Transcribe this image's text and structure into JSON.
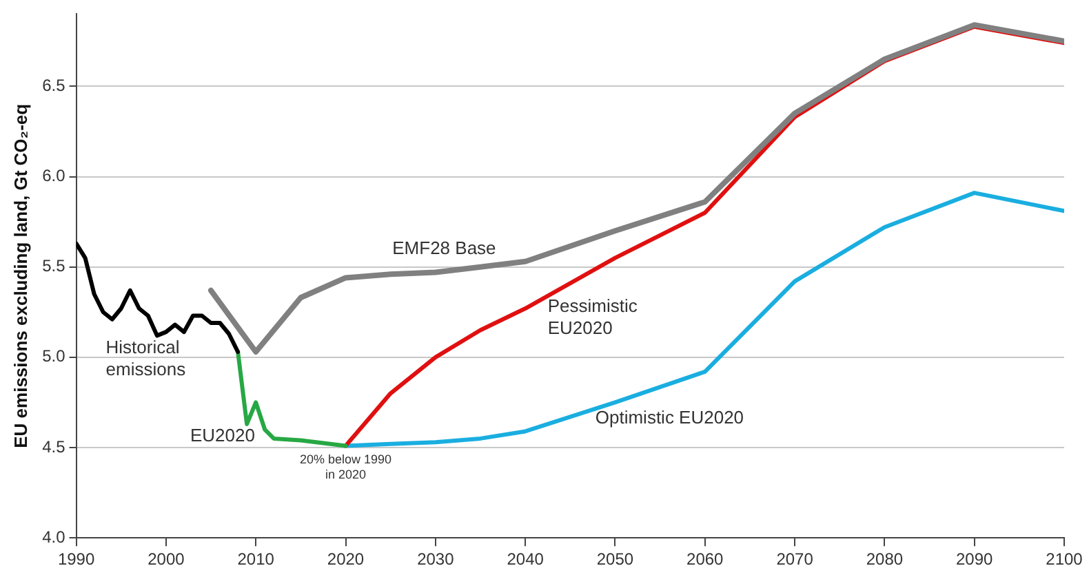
{
  "chart_data": {
    "type": "line",
    "ylabel": "EU emissions excluding land, Gt CO₂-eq",
    "xlim": [
      1990,
      2100
    ],
    "xticks": [
      1990,
      2000,
      2010,
      2020,
      2030,
      2040,
      2050,
      2060,
      2070,
      2080,
      2090,
      2100
    ],
    "ylim": [
      4.0,
      6.9
    ],
    "yticks": [
      {
        "value": 4,
        "label": "4.0"
      },
      4.5,
      {
        "value": 5,
        "label": "5.0"
      },
      5.5,
      {
        "value": 6,
        "label": "6.0"
      },
      6.5
    ],
    "grid": "y",
    "legend": false,
    "marker": "none",
    "line_style": "solid",
    "series": [
      {
        "name": "Historical emissions",
        "color": "#000000",
        "x": [
          1990,
          1991,
          1992,
          1993,
          1994,
          1995,
          1996,
          1997,
          1998,
          1999,
          2000,
          2001,
          2002,
          2003,
          2004,
          2005,
          2006,
          2007,
          2008
        ],
        "values": [
          5.63,
          5.55,
          5.35,
          5.25,
          5.21,
          5.27,
          5.37,
          5.27,
          5.23,
          5.12,
          5.14,
          5.18,
          5.14,
          5.23,
          5.23,
          5.19,
          5.19,
          5.13,
          5.03
        ]
      },
      {
        "name": "EU2020",
        "color": "#27a844",
        "x": [
          2008,
          2009,
          2010,
          2011,
          2012,
          2015,
          2020
        ],
        "values": [
          5.03,
          4.63,
          4.75,
          4.6,
          4.55,
          4.54,
          4.51
        ]
      },
      {
        "name": "EMF28 Base",
        "color": "#808080",
        "x": [
          2005,
          2010,
          2015,
          2020,
          2025,
          2030,
          2035,
          2040,
          2050,
          2060,
          2070,
          2080,
          2090,
          2100
        ],
        "values": [
          5.37,
          5.03,
          5.33,
          5.44,
          5.46,
          5.47,
          5.5,
          5.53,
          5.7,
          5.86,
          6.35,
          6.65,
          6.84,
          6.75
        ]
      },
      {
        "name": "Pessimistic EU2020",
        "color": "#e01010",
        "x": [
          2020,
          2025,
          2030,
          2035,
          2040,
          2050,
          2060,
          2070,
          2080,
          2090,
          2100
        ],
        "values": [
          4.51,
          4.8,
          5.0,
          5.15,
          5.27,
          5.55,
          5.8,
          6.33,
          6.64,
          6.83,
          6.74
        ]
      },
      {
        "name": "Optimistic EU2020",
        "color": "#1aaee0",
        "x": [
          2020,
          2025,
          2030,
          2035,
          2040,
          2050,
          2060,
          2070,
          2080,
          2090,
          2100
        ],
        "values": [
          4.51,
          4.52,
          4.53,
          4.55,
          4.59,
          4.75,
          4.92,
          5.42,
          5.72,
          5.91,
          5.81
        ]
      }
    ],
    "annotations": [
      {
        "text": "20% below 1990 in 2020",
        "x": 2020,
        "y": 4.51
      }
    ]
  }
}
